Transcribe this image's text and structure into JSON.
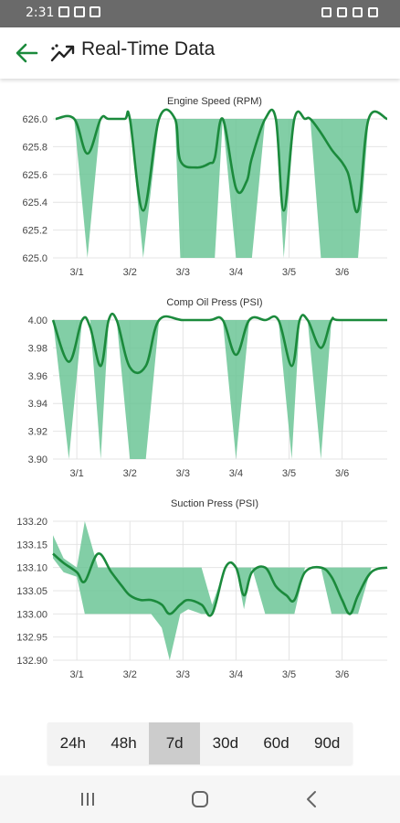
{
  "status": {
    "time": "2:31"
  },
  "app": {
    "title": "Real-Time Data"
  },
  "range_selector": {
    "options": [
      "24h",
      "48h",
      "7d",
      "30d",
      "60d",
      "90d"
    ],
    "selected": "7d"
  },
  "colors": {
    "accent": "#1b8a3c",
    "band": "#6cc597"
  },
  "icons": {
    "back": "arrow-back-icon",
    "trend": "trend-icon"
  },
  "chart_data": [
    {
      "type": "line",
      "title": "Engine Speed (RPM)",
      "xlabels": [
        "3/1",
        "3/2",
        "3/3",
        "3/4",
        "3/5",
        "3/6"
      ],
      "yticks": [
        "626.0",
        "625.8",
        "625.6",
        "625.4",
        "625.2",
        "625.0"
      ],
      "ylim": [
        625.0,
        626.0
      ],
      "xlim": [
        0.55,
        6.85
      ],
      "series": [
        {
          "x": [
            0.6,
            0.95,
            1.2,
            1.45,
            1.6,
            1.9,
            2.0,
            2.25,
            2.55,
            2.85,
            2.95,
            3.25,
            3.5,
            3.6,
            3.75,
            4.0,
            4.2,
            4.3,
            4.55,
            4.75,
            4.9,
            5.1,
            5.3,
            5.4,
            5.6,
            5.8,
            6.1,
            6.3,
            6.5,
            6.85
          ],
          "y": [
            626.0,
            626.0,
            625.75,
            626.0,
            626.0,
            626.0,
            626.0,
            625.34,
            626.0,
            626.0,
            625.7,
            625.65,
            625.68,
            625.72,
            626.0,
            625.5,
            625.55,
            625.72,
            626.0,
            626.0,
            625.34,
            626.0,
            626.0,
            626.0,
            625.9,
            625.78,
            625.62,
            625.34,
            626.0,
            626.0
          ]
        }
      ],
      "band": {
        "x": [
          0.6,
          0.95,
          1.2,
          1.45,
          1.6,
          1.9,
          2.0,
          2.25,
          2.55,
          2.85,
          2.95,
          3.25,
          3.5,
          3.6,
          3.75,
          4.0,
          4.2,
          4.3,
          4.55,
          4.75,
          4.9,
          5.1,
          5.3,
          5.4,
          5.6,
          5.8,
          6.1,
          6.3,
          6.5,
          6.85
        ],
        "low": [
          626.0,
          626.0,
          625.0,
          626.0,
          626.0,
          626.0,
          626.0,
          625.0,
          626.0,
          626.0,
          625.0,
          625.0,
          625.0,
          625.0,
          626.0,
          625.0,
          625.0,
          625.0,
          626.0,
          626.0,
          625.0,
          626.0,
          626.0,
          626.0,
          625.0,
          625.0,
          625.0,
          625.0,
          626.0,
          626.0
        ],
        "high": [
          626.0,
          626.0,
          626.0,
          626.0,
          626.0,
          626.0,
          626.0,
          626.0,
          626.0,
          626.0,
          626.0,
          626.0,
          626.0,
          626.0,
          626.0,
          626.0,
          626.0,
          626.0,
          626.0,
          626.0,
          626.0,
          626.0,
          626.0,
          626.0,
          626.0,
          626.0,
          626.0,
          626.0,
          626.0,
          626.0
        ]
      }
    },
    {
      "type": "line",
      "title": "Comp Oil Press (PSI)",
      "xlabels": [
        "3/1",
        "3/2",
        "3/3",
        "3/4",
        "3/5",
        "3/6"
      ],
      "yticks": [
        "4.00",
        "3.98",
        "3.96",
        "3.94",
        "3.92",
        "3.90"
      ],
      "ylim": [
        3.9,
        4.0
      ],
      "xlim": [
        0.55,
        6.85
      ],
      "series": [
        {
          "x": [
            0.55,
            0.85,
            1.1,
            1.25,
            1.45,
            1.6,
            1.75,
            2.0,
            2.3,
            2.55,
            3.0,
            3.5,
            3.75,
            4.0,
            4.25,
            4.55,
            4.8,
            5.05,
            5.2,
            5.35,
            5.6,
            5.8,
            5.95,
            6.85
          ],
          "y": [
            4.0,
            3.97,
            4.0,
            3.995,
            3.967,
            4.0,
            4.0,
            3.966,
            3.967,
            4.0,
            4.0,
            4.0,
            4.0,
            3.975,
            4.0,
            4.0,
            4.0,
            3.967,
            4.0,
            4.0,
            3.98,
            4.0,
            4.0,
            4.0
          ]
        }
      ],
      "band": {
        "x": [
          0.55,
          0.85,
          1.1,
          1.25,
          1.45,
          1.6,
          1.75,
          2.0,
          2.3,
          2.55,
          3.0,
          3.5,
          3.75,
          4.0,
          4.25,
          4.55,
          4.8,
          5.05,
          5.2,
          5.35,
          5.6,
          5.8,
          5.95,
          6.85
        ],
        "low": [
          4.0,
          3.9,
          4.0,
          4.0,
          3.9,
          4.0,
          4.0,
          3.9,
          3.9,
          4.0,
          4.0,
          4.0,
          4.0,
          3.9,
          4.0,
          4.0,
          4.0,
          3.9,
          4.0,
          4.0,
          3.9,
          4.0,
          4.0,
          4.0
        ],
        "high": [
          4.0,
          4.0,
          4.0,
          4.0,
          4.0,
          4.0,
          4.0,
          4.0,
          4.0,
          4.0,
          4.0,
          4.0,
          4.0,
          4.0,
          4.0,
          4.0,
          4.0,
          4.0,
          4.0,
          4.0,
          4.0,
          4.0,
          4.0,
          4.0
        ]
      }
    },
    {
      "type": "line",
      "title": "Suction Press (PSI)",
      "xlabels": [
        "3/1",
        "3/2",
        "3/3",
        "3/4",
        "3/5",
        "3/6"
      ],
      "yticks": [
        "133.20",
        "133.15",
        "133.10",
        "133.05",
        "133.00",
        "132.95",
        "132.90"
      ],
      "ylim": [
        132.9,
        133.2
      ],
      "xlim": [
        0.55,
        6.85
      ],
      "series": [
        {
          "x": [
            0.55,
            0.75,
            1.0,
            1.15,
            1.4,
            1.65,
            1.85,
            2.0,
            2.2,
            2.4,
            2.6,
            2.75,
            2.95,
            3.1,
            3.35,
            3.55,
            3.8,
            4.0,
            4.15,
            4.3,
            4.55,
            4.75,
            4.95,
            5.1,
            5.3,
            5.6,
            5.8,
            6.0,
            6.15,
            6.3,
            6.55,
            6.85
          ],
          "y": [
            133.13,
            133.11,
            133.09,
            133.07,
            133.13,
            133.09,
            133.06,
            133.04,
            133.03,
            133.03,
            133.02,
            133.0,
            133.02,
            133.03,
            133.02,
            133.0,
            133.1,
            133.1,
            133.04,
            133.09,
            133.1,
            133.06,
            133.04,
            133.03,
            133.09,
            133.1,
            133.08,
            133.03,
            133.0,
            133.04,
            133.09,
            133.1
          ]
        }
      ],
      "band": {
        "x": [
          0.55,
          0.75,
          1.0,
          1.15,
          1.4,
          1.65,
          1.85,
          2.0,
          2.2,
          2.4,
          2.6,
          2.75,
          2.95,
          3.1,
          3.35,
          3.55,
          3.8,
          4.0,
          4.15,
          4.3,
          4.55,
          4.75,
          4.95,
          5.1,
          5.3,
          5.6,
          5.8,
          6.0,
          6.15,
          6.3,
          6.55,
          6.85
        ],
        "low": [
          133.12,
          133.09,
          133.08,
          133.0,
          133.0,
          133.0,
          133.0,
          133.0,
          133.0,
          133.0,
          132.97,
          132.9,
          133.0,
          133.01,
          133.0,
          133.0,
          133.1,
          133.1,
          133.01,
          133.1,
          133.0,
          133.0,
          133.0,
          133.0,
          133.1,
          133.1,
          133.0,
          133.0,
          133.0,
          133.0,
          133.1,
          133.1
        ],
        "high": [
          133.17,
          133.12,
          133.1,
          133.2,
          133.1,
          133.1,
          133.1,
          133.1,
          133.1,
          133.1,
          133.1,
          133.1,
          133.1,
          133.1,
          133.1,
          133.02,
          133.1,
          133.1,
          133.1,
          133.1,
          133.1,
          133.1,
          133.1,
          133.1,
          133.1,
          133.1,
          133.1,
          133.1,
          133.1,
          133.1,
          133.1,
          133.1
        ]
      }
    }
  ]
}
